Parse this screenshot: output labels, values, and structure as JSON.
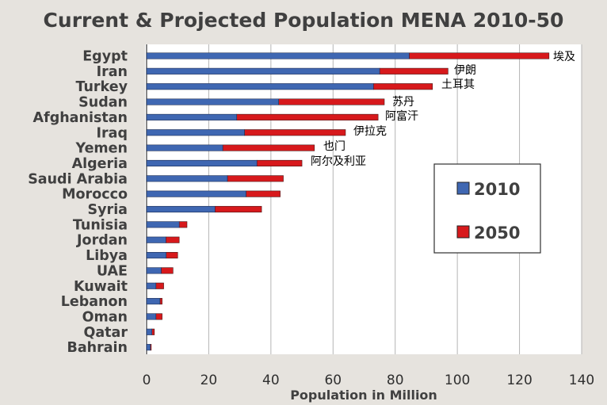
{
  "chart_data": {
    "type": "bar",
    "orientation": "horizontal",
    "title": "Current & Projected Population MENA 2010-50",
    "xlabel": "Population in Million",
    "ylabel": "",
    "xlim": [
      0,
      140
    ],
    "xticks": [
      0,
      20,
      40,
      60,
      80,
      100,
      120,
      140
    ],
    "grid": true,
    "legend_position": "right",
    "categories": [
      "Egypt",
      "Iran",
      "Turkey",
      "Sudan",
      "Afghanistan",
      "Iraq",
      "Yemen",
      "Algeria",
      "Saudi Arabia",
      "Morocco",
      "Syria",
      "Tunisia",
      "Jordan",
      "Libya",
      "UAE",
      "Kuwait",
      "Lebanon",
      "Oman",
      "Qatar",
      "Bahrain"
    ],
    "series": [
      {
        "name": "2010",
        "color": "#3f67b2",
        "values": [
          84.5,
          75,
          73,
          42.5,
          29,
          31.5,
          24.5,
          35.5,
          26,
          32,
          22,
          10.5,
          6.2,
          6.3,
          4.7,
          3,
          4.3,
          3,
          1.7,
          1.2
        ]
      },
      {
        "name": "2050",
        "color": "#d7191c",
        "values": [
          129.5,
          97,
          92,
          76.5,
          74.5,
          64,
          54,
          50,
          44,
          43,
          37,
          13,
          10.5,
          10,
          8.5,
          5.5,
          5,
          5,
          2.5,
          1.5
        ]
      }
    ],
    "annotations": [
      {
        "category": "Egypt",
        "text": "埃及"
      },
      {
        "category": "Iran",
        "text": "伊朗"
      },
      {
        "category": "Turkey",
        "text": "土耳其"
      },
      {
        "category": "Sudan",
        "text": "苏丹"
      },
      {
        "category": "Afghanistan",
        "text": "阿富汗"
      },
      {
        "category": "Iraq",
        "text": "伊拉克"
      },
      {
        "category": "Yemen",
        "text": "也门"
      },
      {
        "category": "Algeria",
        "text": "阿尔及利亚"
      }
    ]
  }
}
